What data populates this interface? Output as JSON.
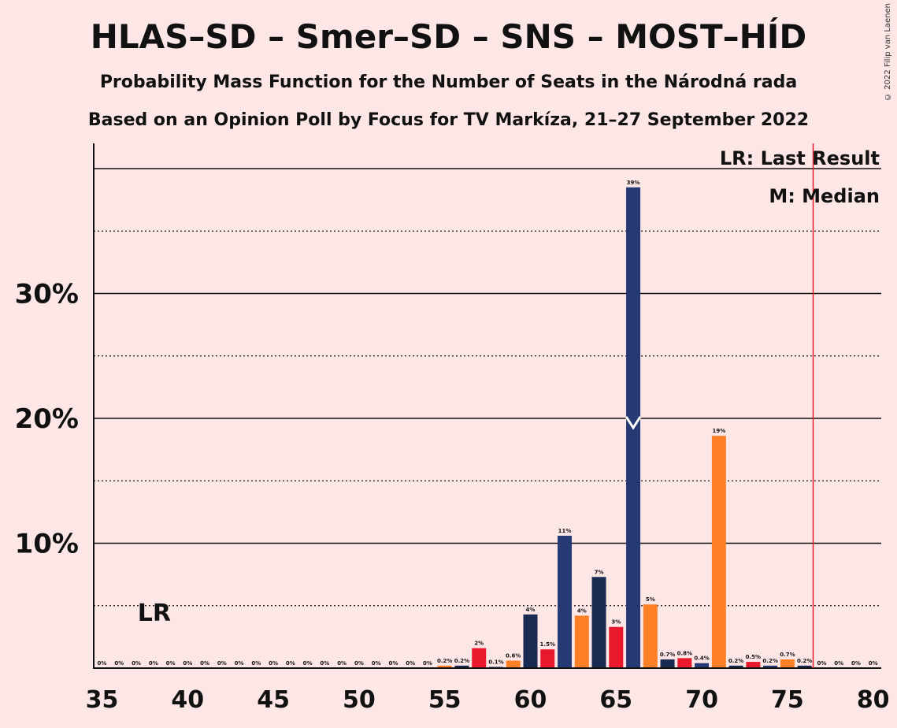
{
  "header": {
    "title": "HLAS–SD – Smer–SD – SNS – MOST–HÍD",
    "subtitle1": "Probability Mass Function for the Number of Seats in the Národná rada",
    "subtitle2": "Based on an Opinion Poll by Focus for TV Markíza, 21–27 September 2022",
    "copyright": "© 2022 Filip van Laenen"
  },
  "legend": {
    "lr": "LR: Last Result",
    "m": "M: Median"
  },
  "chart_data": {
    "type": "bar",
    "title": "HLAS–SD – Smer–SD – SNS – MOST–HÍD",
    "xlabel": "",
    "ylabel": "",
    "xlim": [
      35,
      80
    ],
    "ylim": [
      0,
      42
    ],
    "yticks": [
      {
        "value": 10,
        "label": "10%"
      },
      {
        "value": 20,
        "label": "20%"
      },
      {
        "value": 30,
        "label": "30%"
      }
    ],
    "xticks": [
      35,
      40,
      45,
      50,
      55,
      60,
      65,
      70,
      75,
      80
    ],
    "grid": {
      "solid": [
        10,
        20,
        30,
        40
      ],
      "dotted": [
        5,
        15,
        25,
        35
      ]
    },
    "last_result": {
      "seat": 38,
      "label": "LR"
    },
    "median": 66,
    "majority_line": 76,
    "colors": {
      "navy": "#253A73",
      "dark": "#1A2B52",
      "orange": "#FF7F27",
      "red": "#E8192C",
      "majority": "#E8192C"
    },
    "bars": [
      {
        "seat": 35,
        "value": 0,
        "label": "0%",
        "color": "navy"
      },
      {
        "seat": 36,
        "value": 0,
        "label": "0%",
        "color": "navy"
      },
      {
        "seat": 37,
        "value": 0,
        "label": "0%",
        "color": "navy"
      },
      {
        "seat": 38,
        "value": 0,
        "label": "0%",
        "color": "navy"
      },
      {
        "seat": 39,
        "value": 0,
        "label": "0%",
        "color": "navy"
      },
      {
        "seat": 40,
        "value": 0,
        "label": "0%",
        "color": "navy"
      },
      {
        "seat": 41,
        "value": 0,
        "label": "0%",
        "color": "navy"
      },
      {
        "seat": 42,
        "value": 0,
        "label": "0%",
        "color": "navy"
      },
      {
        "seat": 43,
        "value": 0,
        "label": "0%",
        "color": "navy"
      },
      {
        "seat": 44,
        "value": 0,
        "label": "0%",
        "color": "navy"
      },
      {
        "seat": 45,
        "value": 0,
        "label": "0%",
        "color": "navy"
      },
      {
        "seat": 46,
        "value": 0,
        "label": "0%",
        "color": "navy"
      },
      {
        "seat": 47,
        "value": 0,
        "label": "0%",
        "color": "navy"
      },
      {
        "seat": 48,
        "value": 0,
        "label": "0%",
        "color": "navy"
      },
      {
        "seat": 49,
        "value": 0,
        "label": "0%",
        "color": "navy"
      },
      {
        "seat": 50,
        "value": 0,
        "label": "0%",
        "color": "navy"
      },
      {
        "seat": 51,
        "value": 0,
        "label": "0%",
        "color": "navy"
      },
      {
        "seat": 52,
        "value": 0,
        "label": "0%",
        "color": "navy"
      },
      {
        "seat": 53,
        "value": 0,
        "label": "0%",
        "color": "navy"
      },
      {
        "seat": 54,
        "value": 0,
        "label": "0%",
        "color": "navy"
      },
      {
        "seat": 55,
        "value": 0.2,
        "label": "0.2%",
        "color": "orange"
      },
      {
        "seat": 56,
        "value": 0.2,
        "label": "0.2%",
        "color": "dark"
      },
      {
        "seat": 57,
        "value": 1.6,
        "label": "2%",
        "color": "red"
      },
      {
        "seat": 58,
        "value": 0.1,
        "label": "0.1%",
        "color": "navy"
      },
      {
        "seat": 59,
        "value": 0.6,
        "label": "0.6%",
        "color": "orange"
      },
      {
        "seat": 60,
        "value": 4.3,
        "label": "4%",
        "color": "dark"
      },
      {
        "seat": 61,
        "value": 1.5,
        "label": "1.5%",
        "color": "red"
      },
      {
        "seat": 62,
        "value": 10.6,
        "label": "11%",
        "color": "navy"
      },
      {
        "seat": 63,
        "value": 4.2,
        "label": "4%",
        "color": "orange"
      },
      {
        "seat": 64,
        "value": 7.3,
        "label": "7%",
        "color": "dark"
      },
      {
        "seat": 65,
        "value": 3.3,
        "label": "3%",
        "color": "red"
      },
      {
        "seat": 66,
        "value": 38.5,
        "label": "39%",
        "color": "navy"
      },
      {
        "seat": 67,
        "value": 5.1,
        "label": "5%",
        "color": "orange"
      },
      {
        "seat": 68,
        "value": 0.7,
        "label": "0.7%",
        "color": "dark"
      },
      {
        "seat": 69,
        "value": 0.8,
        "label": "0.8%",
        "color": "red"
      },
      {
        "seat": 70,
        "value": 0.4,
        "label": "0.4%",
        "color": "navy"
      },
      {
        "seat": 71,
        "value": 18.6,
        "label": "19%",
        "color": "orange"
      },
      {
        "seat": 72,
        "value": 0.2,
        "label": "0.2%",
        "color": "dark"
      },
      {
        "seat": 73,
        "value": 0.5,
        "label": "0.5%",
        "color": "red"
      },
      {
        "seat": 74,
        "value": 0.2,
        "label": "0.2%",
        "color": "navy"
      },
      {
        "seat": 75,
        "value": 0.7,
        "label": "0.7%",
        "color": "orange"
      },
      {
        "seat": 76,
        "value": 0.2,
        "label": "0.2%",
        "color": "dark"
      },
      {
        "seat": 77,
        "value": 0,
        "label": "0%",
        "color": "navy"
      },
      {
        "seat": 78,
        "value": 0,
        "label": "0%",
        "color": "navy"
      },
      {
        "seat": 79,
        "value": 0,
        "label": "0%",
        "color": "navy"
      },
      {
        "seat": 80,
        "value": 0,
        "label": "0%",
        "color": "navy"
      }
    ]
  }
}
